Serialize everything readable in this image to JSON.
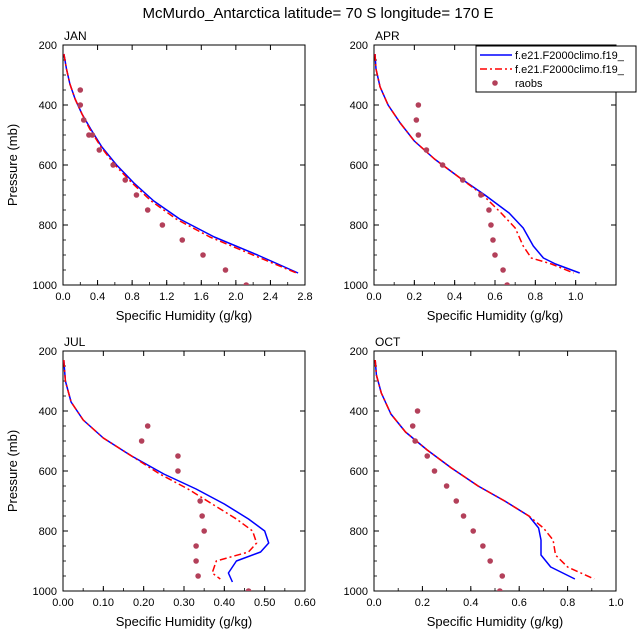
{
  "title": "McMurdo_Antarctica  latitude= 70 S longitude= 170 E",
  "legend": {
    "entries": [
      {
        "label": "f.e21.F2000climo.f19_",
        "color": "#0000ff",
        "dash": "solid",
        "marker": "none"
      },
      {
        "label": "f.e21.F2000climo.f19_",
        "color": "#ff0000",
        "dash": "dashed",
        "marker": "none"
      },
      {
        "label": "raobs",
        "color": "#b3405a",
        "dash": "none",
        "marker": "dot"
      }
    ]
  },
  "chart_data": [
    {
      "type": "line",
      "panel": "JAN",
      "title": "JAN",
      "xlabel": "Specific Humidity (g/kg)",
      "ylabel": "Pressure (mb)",
      "xlim": [
        0,
        2.8
      ],
      "ylim": [
        200,
        1000
      ],
      "y_reversed": true,
      "xticks": [
        0,
        0.4,
        0.8,
        1.2,
        1.6,
        2.0,
        2.4,
        2.8
      ],
      "xtick_labels": [
        "0.0",
        "0.4",
        "0.8",
        "1.2",
        "1.6",
        "2.0",
        "2.4",
        "2.8"
      ],
      "yticks": [
        200,
        400,
        600,
        800,
        1000
      ],
      "ytick_labels": [
        "200",
        "400",
        "600",
        "800",
        "1000"
      ],
      "series": [
        {
          "name": "f.e21.F2000climo.f19_",
          "color": "#0000ff",
          "dash": "solid",
          "x": [
            0.01,
            0.04,
            0.08,
            0.14,
            0.22,
            0.32,
            0.45,
            0.62,
            0.82,
            1.05,
            1.35,
            1.75,
            2.25,
            2.72
          ],
          "y": [
            230,
            280,
            330,
            380,
            430,
            480,
            540,
            600,
            660,
            720,
            780,
            840,
            900,
            960
          ]
        },
        {
          "name": "f.e21.F2000climo.f19_",
          "color": "#ff0000",
          "dash": "dashed",
          "x": [
            0.01,
            0.04,
            0.08,
            0.14,
            0.22,
            0.31,
            0.44,
            0.6,
            0.8,
            1.02,
            1.31,
            1.7,
            2.2,
            2.7
          ],
          "y": [
            230,
            280,
            330,
            380,
            430,
            480,
            540,
            600,
            660,
            720,
            780,
            840,
            900,
            960
          ]
        },
        {
          "name": "raobs",
          "color": "#b3405a",
          "dash": "none",
          "marker": "dot",
          "x": [
            0.2,
            0.2,
            0.24,
            0.3,
            0.34,
            0.42,
            0.58,
            0.72,
            0.85,
            0.98,
            1.15,
            1.38,
            1.62,
            1.88,
            2.12
          ],
          "y": [
            350,
            400,
            450,
            500,
            500,
            550,
            600,
            650,
            700,
            750,
            800,
            850,
            900,
            950,
            1000
          ]
        }
      ]
    },
    {
      "type": "line",
      "panel": "APR",
      "title": "APR",
      "xlabel": "Specific Humidity (g/kg)",
      "ylabel": "Pressure (mb)",
      "xlim": [
        0,
        1.2
      ],
      "ylim": [
        200,
        1000
      ],
      "y_reversed": true,
      "xticks": [
        0,
        0.2,
        0.4,
        0.6,
        0.8,
        1.0
      ],
      "xtick_labels": [
        "0.0",
        "0.2",
        "0.4",
        "0.6",
        "0.8",
        "1.0"
      ],
      "yticks": [
        200,
        400,
        600,
        800,
        1000
      ],
      "ytick_labels": [
        "200",
        "400",
        "600",
        "800",
        "1000"
      ],
      "series": [
        {
          "name": "f.e21.F2000climo.f19_",
          "color": "#0000ff",
          "dash": "solid",
          "x": [
            0.005,
            0.01,
            0.03,
            0.07,
            0.13,
            0.2,
            0.3,
            0.42,
            0.55,
            0.67,
            0.74,
            0.79,
            0.84,
            0.9,
            1.02
          ],
          "y": [
            230,
            280,
            340,
            400,
            460,
            520,
            580,
            640,
            700,
            760,
            810,
            870,
            910,
            930,
            960
          ]
        },
        {
          "name": "f.e21.F2000climo.f19_",
          "color": "#ff0000",
          "dash": "dashed",
          "x": [
            0.005,
            0.01,
            0.03,
            0.07,
            0.13,
            0.2,
            0.3,
            0.42,
            0.54,
            0.63,
            0.7,
            0.74,
            0.78,
            0.88,
            0.99
          ],
          "y": [
            230,
            280,
            340,
            400,
            460,
            520,
            580,
            640,
            700,
            760,
            810,
            870,
            910,
            930,
            960
          ]
        },
        {
          "name": "raobs",
          "color": "#b3405a",
          "dash": "none",
          "marker": "dot",
          "x": [
            0.22,
            0.21,
            0.22,
            0.26,
            0.34,
            0.44,
            0.53,
            0.57,
            0.58,
            0.59,
            0.6,
            0.64,
            0.66
          ],
          "y": [
            400,
            450,
            500,
            550,
            600,
            650,
            700,
            750,
            800,
            850,
            900,
            950,
            1000
          ]
        }
      ]
    },
    {
      "type": "line",
      "panel": "JUL",
      "title": "JUL",
      "xlabel": "Specific Humidity (g/kg)",
      "ylabel": "Pressure (mb)",
      "xlim": [
        0,
        0.6
      ],
      "ylim": [
        200,
        1000
      ],
      "y_reversed": true,
      "xticks": [
        0,
        0.1,
        0.2,
        0.3,
        0.4,
        0.5,
        0.6
      ],
      "xtick_labels": [
        "0.00",
        "0.10",
        "0.20",
        "0.30",
        "0.40",
        "0.50",
        "0.60"
      ],
      "yticks": [
        200,
        400,
        600,
        800,
        1000
      ],
      "ytick_labels": [
        "200",
        "400",
        "600",
        "800",
        "1000"
      ],
      "series": [
        {
          "name": "f.e21.F2000climo.f19_",
          "color": "#0000ff",
          "dash": "solid",
          "x": [
            0.002,
            0.006,
            0.02,
            0.05,
            0.1,
            0.17,
            0.25,
            0.33,
            0.4,
            0.46,
            0.5,
            0.51,
            0.49,
            0.43,
            0.41,
            0.42
          ],
          "y": [
            230,
            300,
            370,
            430,
            490,
            550,
            610,
            660,
            710,
            760,
            800,
            840,
            870,
            900,
            940,
            970
          ]
        },
        {
          "name": "f.e21.F2000climo.f19_",
          "color": "#ff0000",
          "dash": "dashed",
          "x": [
            0.002,
            0.006,
            0.02,
            0.05,
            0.1,
            0.17,
            0.24,
            0.31,
            0.37,
            0.43,
            0.47,
            0.48,
            0.46,
            0.38,
            0.37,
            0.39
          ],
          "y": [
            230,
            300,
            370,
            430,
            490,
            550,
            610,
            660,
            710,
            760,
            800,
            840,
            870,
            900,
            940,
            960
          ]
        },
        {
          "name": "raobs",
          "color": "#b3405a",
          "dash": "none",
          "marker": "dot",
          "x": [
            0.21,
            0.195,
            0.285,
            0.285,
            0.34,
            0.345,
            0.35,
            0.33,
            0.33,
            0.335,
            0.46
          ],
          "y": [
            450,
            500,
            550,
            600,
            700,
            750,
            800,
            850,
            900,
            950,
            1000
          ]
        }
      ]
    },
    {
      "type": "line",
      "panel": "OCT",
      "title": "OCT",
      "xlabel": "Specific Humidity (g/kg)",
      "ylabel": "Pressure (mb)",
      "xlim": [
        0,
        1.0
      ],
      "ylim": [
        200,
        1000
      ],
      "y_reversed": true,
      "xticks": [
        0,
        0.2,
        0.4,
        0.6,
        0.8,
        1.0
      ],
      "xtick_labels": [
        "0.0",
        "0.2",
        "0.4",
        "0.6",
        "0.8",
        "1.0"
      ],
      "yticks": [
        200,
        400,
        600,
        800,
        1000
      ],
      "ytick_labels": [
        "200",
        "400",
        "600",
        "800",
        "1000"
      ],
      "series": [
        {
          "name": "f.e21.F2000climo.f19_",
          "color": "#0000ff",
          "dash": "solid",
          "x": [
            0.005,
            0.01,
            0.03,
            0.07,
            0.13,
            0.22,
            0.32,
            0.43,
            0.54,
            0.64,
            0.68,
            0.69,
            0.69,
            0.73,
            0.83
          ],
          "y": [
            230,
            280,
            340,
            410,
            470,
            530,
            590,
            650,
            700,
            750,
            790,
            830,
            880,
            920,
            960
          ]
        },
        {
          "name": "f.e21.F2000climo.f19_",
          "color": "#ff0000",
          "dash": "dashed",
          "x": [
            0.005,
            0.01,
            0.03,
            0.07,
            0.13,
            0.22,
            0.32,
            0.43,
            0.54,
            0.64,
            0.7,
            0.74,
            0.75,
            0.8,
            0.91
          ],
          "y": [
            230,
            280,
            340,
            410,
            470,
            530,
            590,
            650,
            700,
            750,
            790,
            830,
            880,
            920,
            960
          ]
        },
        {
          "name": "raobs",
          "color": "#b3405a",
          "dash": "none",
          "marker": "dot",
          "x": [
            0.18,
            0.16,
            0.17,
            0.22,
            0.25,
            0.3,
            0.34,
            0.37,
            0.41,
            0.45,
            0.48,
            0.53,
            0.52
          ],
          "y": [
            400,
            450,
            500,
            550,
            600,
            650,
            700,
            750,
            800,
            850,
            900,
            950,
            1000
          ]
        }
      ]
    }
  ]
}
